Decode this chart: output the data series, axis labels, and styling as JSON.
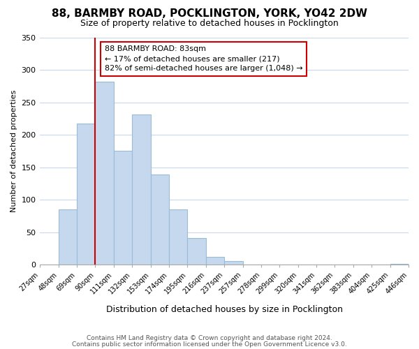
{
  "title": "88, BARMBY ROAD, POCKLINGTON, YORK, YO42 2DW",
  "subtitle": "Size of property relative to detached houses in Pocklington",
  "xlabel": "Distribution of detached houses by size in Pocklington",
  "ylabel": "Number of detached properties",
  "bar_values": [
    0,
    85,
    218,
    282,
    176,
    232,
    139,
    85,
    41,
    12,
    5,
    0,
    0,
    0,
    0,
    0,
    0,
    0,
    0,
    1
  ],
  "bar_labels": [
    "27sqm",
    "48sqm",
    "69sqm",
    "90sqm",
    "111sqm",
    "132sqm",
    "153sqm",
    "174sqm",
    "195sqm",
    "216sqm",
    "237sqm",
    "257sqm",
    "278sqm",
    "299sqm",
    "320sqm",
    "341sqm",
    "362sqm",
    "383sqm",
    "404sqm",
    "425sqm",
    "446sqm"
  ],
  "bar_color": "#c5d8ed",
  "bar_edge_color": "#9bbcd8",
  "vline_color": "#cc0000",
  "vline_x_index": 2.5,
  "annotation_text": "88 BARMBY ROAD: 83sqm\n← 17% of detached houses are smaller (217)\n82% of semi-detached houses are larger (1,048) →",
  "annotation_box_facecolor": "#ffffff",
  "annotation_box_edgecolor": "#cc0000",
  "ylim": [
    0,
    350
  ],
  "yticks": [
    0,
    50,
    100,
    150,
    200,
    250,
    300,
    350
  ],
  "footer_line1": "Contains HM Land Registry data © Crown copyright and database right 2024.",
  "footer_line2": "Contains public sector information licensed under the Open Government Licence v3.0.",
  "background_color": "#ffffff",
  "grid_color": "#c8d8e8"
}
